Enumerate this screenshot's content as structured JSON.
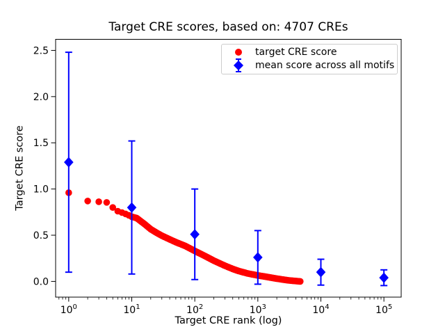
{
  "chart_data": {
    "type": "scatter",
    "title": "Target CRE scores, based on: 4707 CREs",
    "xlabel": "Target CRE rank (log)",
    "ylabel": "Target CRE score",
    "xscale": "log",
    "xlim": [
      0.62,
      188000
    ],
    "ylim": [
      -0.17,
      2.62
    ],
    "grid": false,
    "yticks": [
      0.0,
      0.5,
      1.0,
      1.5,
      2.0,
      2.5
    ],
    "ytick_labels": [
      "0.0",
      "0.5",
      "1.0",
      "1.5",
      "2.0",
      "2.5"
    ],
    "xtick_base": "10",
    "xtick_exponents": [
      "0",
      "1",
      "2",
      "3",
      "4",
      "5"
    ],
    "colors": {
      "target_series": "#ff0000",
      "mean_series": "#0000ff",
      "axis": "#000000",
      "legend_border": "#cccccc"
    },
    "series": [
      {
        "name": "target CRE score",
        "type": "scatter",
        "marker": "circle",
        "color": "#ff0000",
        "n_points_total": 4707,
        "control_points": [
          [
            1,
            0.96
          ],
          [
            2,
            0.87
          ],
          [
            3,
            0.862
          ],
          [
            4,
            0.855
          ],
          [
            5,
            0.8
          ],
          [
            6,
            0.76
          ],
          [
            7,
            0.745
          ],
          [
            8,
            0.73
          ],
          [
            9,
            0.715
          ],
          [
            10,
            0.7
          ],
          [
            12,
            0.685
          ],
          [
            14,
            0.65
          ],
          [
            16,
            0.62
          ],
          [
            20,
            0.565
          ],
          [
            25,
            0.525
          ],
          [
            30,
            0.495
          ],
          [
            40,
            0.455
          ],
          [
            50,
            0.425
          ],
          [
            70,
            0.385
          ],
          [
            100,
            0.33
          ],
          [
            150,
            0.27
          ],
          [
            200,
            0.225
          ],
          [
            300,
            0.17
          ],
          [
            400,
            0.135
          ],
          [
            500,
            0.112
          ],
          [
            700,
            0.085
          ],
          [
            1000,
            0.065
          ],
          [
            1500,
            0.045
          ],
          [
            2000,
            0.03
          ],
          [
            3000,
            0.012
          ],
          [
            4707,
            0.0
          ]
        ]
      },
      {
        "name": "mean score across all motifs",
        "type": "errorbar",
        "marker": "diamond",
        "color": "#0000ff",
        "x": [
          1,
          10,
          100,
          1000,
          10000,
          100000
        ],
        "y": [
          1.29,
          0.8,
          0.51,
          0.26,
          0.1,
          0.04
        ],
        "yerr": [
          1.19,
          0.72,
          0.49,
          0.29,
          0.14,
          0.085
        ]
      }
    ],
    "legend": {
      "position": "upper right",
      "entries": [
        {
          "label": "target CRE score",
          "marker": "red-circle"
        },
        {
          "label": "mean score across all motifs",
          "marker": "blue-diamond-errorbar"
        }
      ]
    }
  }
}
